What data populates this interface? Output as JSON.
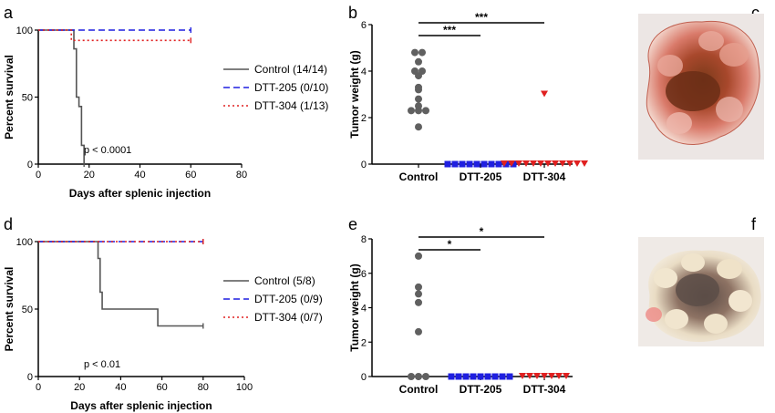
{
  "panel_labels": {
    "a": "a",
    "b": "b",
    "c": "c",
    "d": "d",
    "e": "e",
    "f": "f"
  },
  "chart_data": [
    {
      "id": "a",
      "type": "line",
      "xlabel": "Days after splenic injection",
      "ylabel": "Percent survival",
      "xlim": [
        0,
        80
      ],
      "ylim": [
        0,
        100
      ],
      "xticks": [
        "0",
        "20",
        "40",
        "60",
        "80"
      ],
      "yticks": [
        "0",
        "50",
        "100"
      ],
      "annotation": "p < 0.0001",
      "legend_position": "right",
      "series": [
        {
          "name": "Control (14/14)",
          "color": "#555555",
          "style": "solid",
          "x": [
            0,
            14,
            14,
            15,
            15,
            16,
            16,
            17,
            17,
            18,
            18
          ],
          "y": [
            100,
            100,
            86,
            86,
            50,
            50,
            43,
            43,
            14,
            14,
            0
          ]
        },
        {
          "name": "DTT-205 (0/10)",
          "color": "#1f1fe0",
          "style": "dashed",
          "x": [
            0,
            60
          ],
          "y": [
            100,
            100
          ]
        },
        {
          "name": "DTT-304 (1/13)",
          "color": "#e02020",
          "style": "dotted",
          "x": [
            0,
            13,
            13,
            60
          ],
          "y": [
            100,
            100,
            92.3,
            92.3
          ]
        }
      ]
    },
    {
      "id": "b",
      "type": "scatter",
      "ylabel": "Tumor weight (g)",
      "ylim": [
        0,
        6
      ],
      "yticks": [
        "0",
        "2",
        "4",
        "6"
      ],
      "categories": [
        "Control",
        "DTT-205",
        "DTT-304"
      ],
      "colors": [
        "#606060",
        "#1f1fe0",
        "#e02020"
      ],
      "groups": [
        {
          "name": "Control",
          "values": [
            4.8,
            4.8,
            4.4,
            4.0,
            4.0,
            3.8,
            3.3,
            3.2,
            2.8,
            2.5,
            2.3,
            2.3,
            2.3,
            1.6
          ]
        },
        {
          "name": "DTT-205",
          "values": [
            0,
            0,
            0,
            0,
            0,
            0,
            0,
            0,
            0,
            0
          ]
        },
        {
          "name": "DTT-304",
          "values": [
            3.0,
            0,
            0,
            0,
            0,
            0,
            0,
            0,
            0,
            0,
            0,
            0,
            0
          ]
        }
      ],
      "significance": [
        {
          "from": "Control",
          "to": "DTT-205",
          "label": "***"
        },
        {
          "from": "Control",
          "to": "DTT-304",
          "label": "***"
        }
      ]
    },
    {
      "id": "d",
      "type": "line",
      "xlabel": "Days after splenic injection",
      "ylabel": "Percent survival",
      "xlim": [
        0,
        100
      ],
      "ylim": [
        0,
        100
      ],
      "xticks": [
        "0",
        "20",
        "40",
        "60",
        "80",
        "100"
      ],
      "yticks": [
        "0",
        "50",
        "100"
      ],
      "annotation": "p < 0.01",
      "legend_position": "right",
      "series": [
        {
          "name": "Control (5/8)",
          "color": "#555555",
          "style": "solid",
          "x": [
            0,
            29,
            29,
            30,
            30,
            31,
            31,
            58,
            58,
            80
          ],
          "y": [
            100,
            100,
            87.5,
            87.5,
            62.5,
            62.5,
            50,
            50,
            37.5,
            37.5
          ]
        },
        {
          "name": "DTT-205 (0/9)",
          "color": "#1f1fe0",
          "style": "dashed",
          "x": [
            0,
            80
          ],
          "y": [
            100,
            100
          ]
        },
        {
          "name": "DTT-304 (0/7)",
          "color": "#e02020",
          "style": "dotted",
          "x": [
            0,
            80
          ],
          "y": [
            100,
            100
          ]
        }
      ]
    },
    {
      "id": "e",
      "type": "scatter",
      "ylabel": "Tumor weight (g)",
      "ylim": [
        0,
        8
      ],
      "yticks": [
        "0",
        "2",
        "4",
        "6",
        "8"
      ],
      "categories": [
        "Control",
        "DTT-205",
        "DTT-304"
      ],
      "colors": [
        "#606060",
        "#1f1fe0",
        "#e02020"
      ],
      "groups": [
        {
          "name": "Control",
          "values": [
            7.0,
            5.2,
            4.8,
            4.3,
            2.6,
            0,
            0,
            0
          ]
        },
        {
          "name": "DTT-205",
          "values": [
            0,
            0,
            0,
            0,
            0,
            0,
            0,
            0,
            0
          ]
        },
        {
          "name": "DTT-304",
          "values": [
            0,
            0,
            0,
            0,
            0,
            0,
            0
          ]
        }
      ],
      "significance": [
        {
          "from": "Control",
          "to": "DTT-205",
          "label": "*"
        },
        {
          "from": "Control",
          "to": "DTT-304",
          "label": "*"
        }
      ]
    }
  ]
}
